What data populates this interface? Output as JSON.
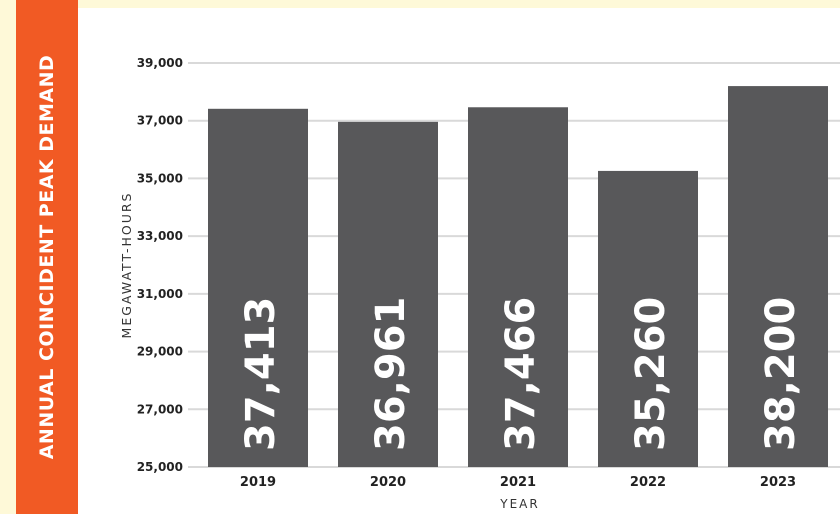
{
  "chart_data": {
    "type": "bar",
    "title": "ANNUAL COINCIDENT PEAK DEMAND",
    "xlabel": "YEAR",
    "ylabel": "MEGAWATT-HOURS",
    "ylim": [
      25000,
      39000
    ],
    "yticks": [
      "39,000",
      "37,000",
      "35,000",
      "33,000",
      "31,000",
      "29,000",
      "27,000",
      "25,000"
    ],
    "categories": [
      "2019",
      "2020",
      "2021",
      "2022",
      "2023"
    ],
    "values": [
      37413,
      36961,
      37466,
      35260,
      38200
    ],
    "value_labels": [
      "37,413",
      "36,961",
      "37,466",
      "35,260",
      "38,200"
    ],
    "grid": true,
    "colors": {
      "bar": "#58585a",
      "accent": "#f15a24",
      "background": "#fef9d8",
      "grid": "#d9d9d9"
    }
  }
}
